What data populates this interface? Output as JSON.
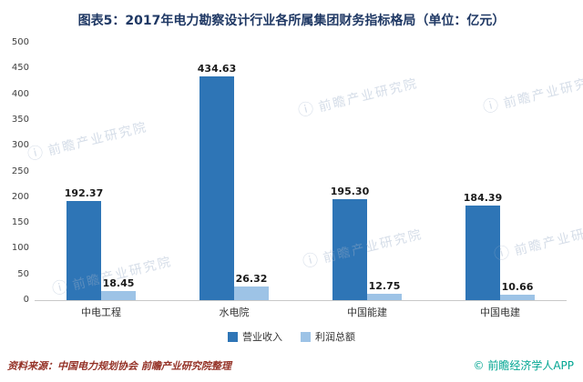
{
  "title": "图表5：2017年电力勘察设计行业各所属集团财务指标格局（单位：亿元）",
  "watermark": {
    "icon": "ⓘ",
    "text": "前瞻产业研究院"
  },
  "footer": {
    "source": "资料来源：中国电力规划协会 前瞻产业研究院整理",
    "brand": "© 前瞻经济学人APP"
  },
  "chart_data": {
    "type": "bar",
    "title": "2017年电力勘察设计行业各所属集团财务指标格局",
    "unit": "亿元",
    "categories": [
      "中电工程",
      "水电院",
      "中国能建",
      "中国电建"
    ],
    "series": [
      {
        "name": "营业收入",
        "color": "#2E75B6",
        "values": [
          192.37,
          434.63,
          195.3,
          184.39
        ]
      },
      {
        "name": "利润总额",
        "color": "#9DC3E6",
        "values": [
          18.45,
          26.32,
          12.75,
          10.66
        ]
      }
    ],
    "ylim": [
      0,
      500
    ],
    "ytick_step": 50,
    "grid": false,
    "legend_position": "bottom",
    "value_labels": true
  }
}
